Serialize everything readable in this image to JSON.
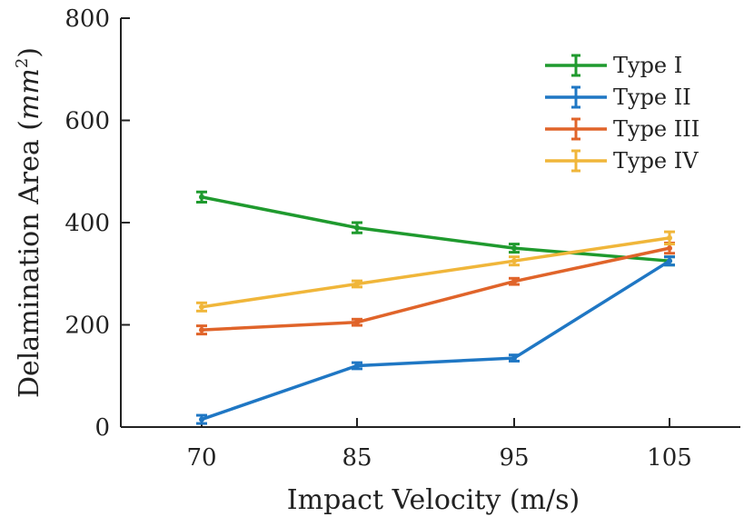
{
  "chart_data": {
    "type": "line",
    "title": "",
    "xlabel": "Impact Velocity (m/s)",
    "ylabel_prefix": "Delamination Area (",
    "ylabel_unit": "mm",
    "ylabel_exp": "2",
    "ylabel_suffix": ")",
    "categories": [
      "70",
      "85",
      "95",
      "105"
    ],
    "ylim": [
      0,
      800
    ],
    "yticks": [
      0,
      200,
      400,
      600,
      800
    ],
    "grid": false,
    "legend_position": "top-right",
    "series": [
      {
        "name": "Type I",
        "color": "#1f9a2e",
        "values": [
          450,
          390,
          350,
          325
        ],
        "errors": [
          10,
          10,
          8,
          8
        ]
      },
      {
        "name": "Type II",
        "color": "#1f77c4",
        "values": [
          15,
          120,
          135,
          325
        ],
        "errors": [
          8,
          6,
          6,
          8
        ]
      },
      {
        "name": "Type III",
        "color": "#e0642a",
        "values": [
          190,
          205,
          285,
          350
        ],
        "errors": [
          8,
          6,
          6,
          10
        ]
      },
      {
        "name": "Type IV",
        "color": "#f0b63a",
        "values": [
          235,
          280,
          325,
          370
        ],
        "errors": [
          8,
          6,
          8,
          12
        ]
      }
    ]
  }
}
